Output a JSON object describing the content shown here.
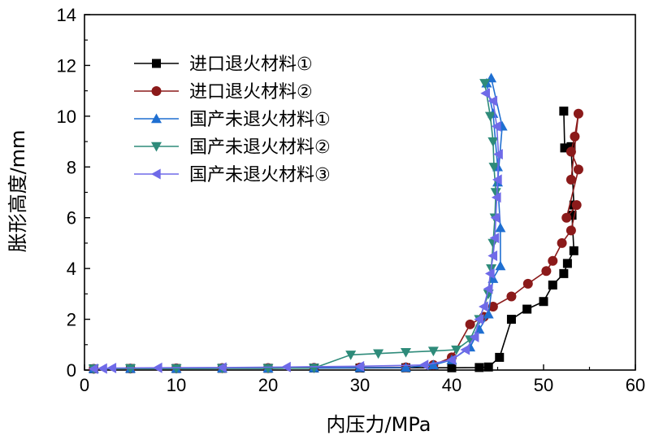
{
  "chart_data": {
    "type": "scatter",
    "title": "",
    "xlabel": "内压力/MPa",
    "ylabel": "胀形高度/mm",
    "xlim": [
      0,
      60
    ],
    "ylim": [
      0,
      14
    ],
    "xticks": [
      0,
      10,
      20,
      30,
      40,
      50,
      60
    ],
    "yticks": [
      0,
      2,
      4,
      6,
      8,
      10,
      12,
      14
    ],
    "legend_position": "top-left",
    "series": [
      {
        "name": "进口退火材料①",
        "color": "#000000",
        "marker": "square",
        "points": [
          [
            1,
            0.05
          ],
          [
            5,
            0.06
          ],
          [
            10,
            0.06
          ],
          [
            15,
            0.07
          ],
          [
            20,
            0.07
          ],
          [
            25,
            0.08
          ],
          [
            30,
            0.08
          ],
          [
            35,
            0.09
          ],
          [
            40,
            0.09
          ],
          [
            43,
            0.1
          ],
          [
            44,
            0.12
          ],
          [
            45.2,
            0.5
          ],
          [
            46.5,
            2.0
          ],
          [
            48.2,
            2.4
          ],
          [
            50,
            2.7
          ],
          [
            51,
            3.35
          ],
          [
            52.2,
            3.8
          ],
          [
            52.6,
            4.2
          ],
          [
            53.3,
            4.7
          ],
          [
            53.1,
            6.1
          ],
          [
            53.3,
            6.5
          ],
          [
            53,
            8.8
          ],
          [
            52.3,
            8.75
          ],
          [
            52.2,
            10.2
          ]
        ]
      },
      {
        "name": "进口退火材料②",
        "color": "#8b1a1a",
        "marker": "circle",
        "points": [
          [
            1,
            0.05
          ],
          [
            5,
            0.06
          ],
          [
            10,
            0.07
          ],
          [
            15,
            0.08
          ],
          [
            20,
            0.08
          ],
          [
            25,
            0.09
          ],
          [
            30,
            0.1
          ],
          [
            35,
            0.11
          ],
          [
            38,
            0.2
          ],
          [
            40,
            0.5
          ],
          [
            42,
            1.8
          ],
          [
            43.5,
            2.1
          ],
          [
            44.5,
            2.5
          ],
          [
            46.5,
            2.9
          ],
          [
            48.3,
            3.4
          ],
          [
            50.3,
            3.9
          ],
          [
            51,
            4.3
          ],
          [
            52,
            5.0
          ],
          [
            53,
            5.5
          ],
          [
            53.6,
            6.5
          ],
          [
            52.5,
            6.0
          ],
          [
            53.8,
            7.9
          ],
          [
            53,
            8.6
          ],
          [
            53.4,
            9.2
          ],
          [
            53.8,
            10.1
          ],
          [
            53,
            7.5
          ]
        ]
      },
      {
        "name": "国产未退火材料①",
        "color": "#1f6fd1",
        "marker": "triangle-up",
        "points": [
          [
            1,
            0.05
          ],
          [
            5,
            0.06
          ],
          [
            10,
            0.06
          ],
          [
            15,
            0.07
          ],
          [
            20,
            0.07
          ],
          [
            25,
            0.08
          ],
          [
            30,
            0.09
          ],
          [
            35,
            0.1
          ],
          [
            38,
            0.2
          ],
          [
            40,
            0.4
          ],
          [
            42,
            0.9
          ],
          [
            43,
            1.6
          ],
          [
            44,
            2.2
          ],
          [
            44.5,
            3.6
          ],
          [
            45.3,
            4.1
          ],
          [
            45.3,
            5.6
          ],
          [
            45,
            7.4
          ],
          [
            45.5,
            9.6
          ],
          [
            44.3,
            11.5
          ],
          [
            43.8,
            11.3
          ],
          [
            44.5,
            10.1
          ],
          [
            45,
            8.0
          ]
        ]
      },
      {
        "name": "国产未退火材料②",
        "color": "#2e8b7a",
        "marker": "triangle-down",
        "points": [
          [
            1,
            0.05
          ],
          [
            5,
            0.06
          ],
          [
            10,
            0.06
          ],
          [
            15,
            0.07
          ],
          [
            20,
            0.07
          ],
          [
            25,
            0.08
          ],
          [
            29,
            0.6
          ],
          [
            32,
            0.65
          ],
          [
            35,
            0.7
          ],
          [
            38,
            0.75
          ],
          [
            40.5,
            0.8
          ],
          [
            42,
            1.2
          ],
          [
            43,
            2.0
          ],
          [
            44,
            3.0
          ],
          [
            44.3,
            4.0
          ],
          [
            44.5,
            5.0
          ],
          [
            44.7,
            6.0
          ],
          [
            44.8,
            7.0
          ],
          [
            44.6,
            8.0
          ],
          [
            44.5,
            9.0
          ],
          [
            44.2,
            10.0
          ],
          [
            43.6,
            11.3
          ]
        ]
      },
      {
        "name": "国产未退火材料③",
        "color": "#6f6ae8",
        "marker": "triangle-left",
        "points": [
          [
            1,
            0.05
          ],
          [
            2,
            0.06
          ],
          [
            3,
            0.08
          ],
          [
            8,
            0.09
          ],
          [
            15,
            0.1
          ],
          [
            22,
            0.12
          ],
          [
            30,
            0.15
          ],
          [
            37,
            0.2
          ],
          [
            40,
            0.4
          ],
          [
            41.5,
            0.8
          ],
          [
            42.5,
            1.3
          ],
          [
            43,
            2.0
          ],
          [
            43.5,
            2.5
          ],
          [
            44,
            3.2
          ],
          [
            44.2,
            3.8
          ],
          [
            44.5,
            4.5
          ],
          [
            44.7,
            5.2
          ],
          [
            44.8,
            6.0
          ],
          [
            44.9,
            6.8
          ],
          [
            45,
            7.5
          ],
          [
            45.1,
            8.5
          ],
          [
            44.9,
            9.6
          ],
          [
            44.5,
            10.6
          ],
          [
            43.7,
            10.9
          ]
        ]
      }
    ]
  }
}
